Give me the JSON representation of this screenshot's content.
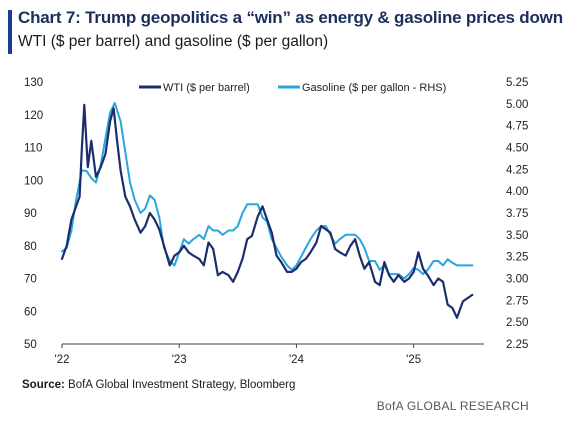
{
  "header": {
    "title": "Chart 7: Trump geopolitics a “win” as energy & gasoline prices down",
    "subtitle": "WTI ($ per barrel) and gasoline ($ per gallon)",
    "accent_color": "#1a3e8c"
  },
  "footer": {
    "source_label": "Source:",
    "source_text": " BofA Global Investment Strategy, Bloomberg",
    "brand": "BofA GLOBAL RESEARCH"
  },
  "chart_data": {
    "type": "line",
    "x_ticks": [
      "'22",
      "'23",
      "'24",
      "'25"
    ],
    "y_left": {
      "ticks": [
        50,
        60,
        70,
        80,
        90,
        100,
        110,
        120,
        130
      ],
      "ylim": [
        50,
        130
      ]
    },
    "y_right": {
      "ticks": [
        "2.25",
        "2.50",
        "2.75",
        "3.00",
        "3.25",
        "3.50",
        "3.75",
        "4.00",
        "4.25",
        "4.50",
        "4.75",
        "5.00",
        "5.25"
      ],
      "ylim": [
        2.25,
        5.25
      ]
    },
    "x_domain": [
      2022.0,
      2025.6
    ],
    "legend_position": "top-right",
    "grid": false,
    "series": [
      {
        "name": "WTI ($ per barrel)",
        "axis": "left",
        "color": "#1b2e6b",
        "x": [
          2022.0,
          2022.04,
          2022.08,
          2022.12,
          2022.15,
          2022.17,
          2022.19,
          2022.22,
          2022.25,
          2022.29,
          2022.33,
          2022.37,
          2022.41,
          2022.44,
          2022.47,
          2022.5,
          2022.54,
          2022.58,
          2022.62,
          2022.67,
          2022.71,
          2022.75,
          2022.79,
          2022.83,
          2022.87,
          2022.92,
          2022.96,
          2023.0,
          2023.04,
          2023.08,
          2023.12,
          2023.17,
          2023.21,
          2023.25,
          2023.29,
          2023.33,
          2023.37,
          2023.42,
          2023.46,
          2023.5,
          2023.54,
          2023.58,
          2023.62,
          2023.67,
          2023.71,
          2023.75,
          2023.79,
          2023.83,
          2023.87,
          2023.92,
          2023.96,
          2024.0,
          2024.04,
          2024.08,
          2024.12,
          2024.17,
          2024.21,
          2024.25,
          2024.29,
          2024.33,
          2024.37,
          2024.42,
          2024.46,
          2024.5,
          2024.54,
          2024.58,
          2024.62,
          2024.67,
          2024.71,
          2024.75,
          2024.79,
          2024.83,
          2024.87,
          2024.92,
          2024.96,
          2025.0,
          2025.04,
          2025.08,
          2025.12,
          2025.17,
          2025.21,
          2025.25,
          2025.29,
          2025.33,
          2025.37,
          2025.42,
          2025.46,
          2025.5
        ],
        "values": [
          76,
          80,
          88,
          92,
          95,
          110,
          123,
          104,
          112,
          101,
          104,
          108,
          118,
          122,
          112,
          103,
          95,
          92,
          88,
          84,
          86,
          90,
          88,
          85,
          80,
          74,
          77,
          78,
          80,
          78,
          77,
          76,
          74,
          81,
          79,
          71,
          72,
          71,
          69,
          72,
          76,
          82,
          83,
          89,
          92,
          88,
          84,
          77,
          75,
          72,
          72,
          73,
          75,
          76,
          78,
          81,
          86,
          85,
          84,
          79,
          78,
          77,
          80,
          82,
          77,
          73,
          75,
          69,
          68,
          75,
          71,
          69,
          71,
          69,
          70,
          72,
          78,
          73,
          71,
          68,
          70,
          69,
          62,
          61,
          58,
          63,
          64,
          65
        ],
        "labels": {
          "start": "2022-01",
          "end": "2025-06"
        }
      },
      {
        "name": "Gasoline ($ per gallon - RHS)",
        "axis": "right",
        "color": "#2aa4dd",
        "x": [
          2022.0,
          2022.04,
          2022.08,
          2022.12,
          2022.17,
          2022.21,
          2022.25,
          2022.29,
          2022.33,
          2022.37,
          2022.41,
          2022.45,
          2022.5,
          2022.54,
          2022.58,
          2022.62,
          2022.67,
          2022.71,
          2022.75,
          2022.79,
          2022.83,
          2022.87,
          2022.92,
          2022.96,
          2023.0,
          2023.04,
          2023.08,
          2023.12,
          2023.17,
          2023.21,
          2023.25,
          2023.29,
          2023.33,
          2023.37,
          2023.42,
          2023.46,
          2023.5,
          2023.54,
          2023.58,
          2023.62,
          2023.67,
          2023.71,
          2023.75,
          2023.79,
          2023.83,
          2023.87,
          2023.92,
          2023.96,
          2024.0,
          2024.04,
          2024.08,
          2024.12,
          2024.17,
          2024.21,
          2024.25,
          2024.29,
          2024.33,
          2024.37,
          2024.42,
          2024.46,
          2024.5,
          2024.54,
          2024.58,
          2024.62,
          2024.67,
          2024.71,
          2024.75,
          2024.79,
          2024.83,
          2024.87,
          2024.92,
          2024.96,
          2025.0,
          2025.04,
          2025.08,
          2025.12,
          2025.17,
          2025.21,
          2025.25,
          2025.29,
          2025.33,
          2025.37,
          2025.42,
          2025.46,
          2025.5
        ],
        "values": [
          3.31,
          3.35,
          3.55,
          3.9,
          4.24,
          4.23,
          4.15,
          4.1,
          4.3,
          4.6,
          4.9,
          5.01,
          4.8,
          4.45,
          4.1,
          3.9,
          3.75,
          3.8,
          3.95,
          3.9,
          3.7,
          3.35,
          3.2,
          3.15,
          3.3,
          3.45,
          3.4,
          3.45,
          3.5,
          3.45,
          3.6,
          3.55,
          3.55,
          3.5,
          3.55,
          3.55,
          3.6,
          3.75,
          3.85,
          3.85,
          3.85,
          3.7,
          3.65,
          3.45,
          3.35,
          3.25,
          3.15,
          3.1,
          3.15,
          3.25,
          3.35,
          3.45,
          3.55,
          3.6,
          3.6,
          3.5,
          3.4,
          3.45,
          3.5,
          3.5,
          3.5,
          3.45,
          3.35,
          3.2,
          3.2,
          3.1,
          3.15,
          3.05,
          3.05,
          3.05,
          3.0,
          3.05,
          3.12,
          3.1,
          3.05,
          3.1,
          3.2,
          3.2,
          3.15,
          3.22,
          3.18,
          3.15,
          3.15,
          3.15,
          3.15
        ],
        "labels": {
          "start": "2022-01",
          "end": "2025-06"
        }
      }
    ]
  }
}
